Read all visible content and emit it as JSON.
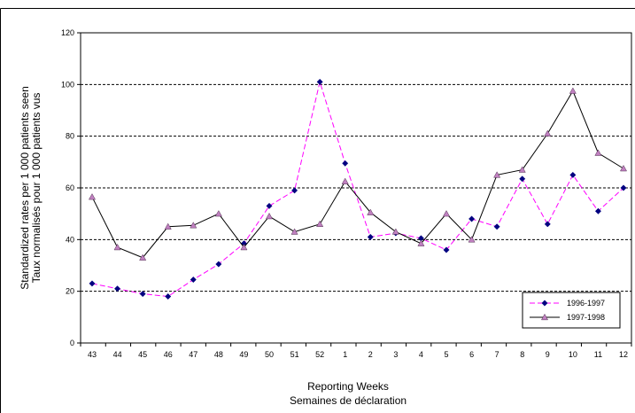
{
  "chart_data": {
    "type": "line",
    "categories": [
      "43",
      "44",
      "45",
      "46",
      "47",
      "48",
      "49",
      "50",
      "51",
      "52",
      "1",
      "2",
      "3",
      "4",
      "5",
      "6",
      "7",
      "8",
      "9",
      "10",
      "11",
      "12"
    ],
    "series": [
      {
        "name": "1996-1997",
        "values": [
          23,
          21,
          19,
          18,
          24.5,
          30.5,
          38.5,
          53,
          59,
          101,
          69.5,
          41,
          42.5,
          40.5,
          36,
          48,
          45,
          63.5,
          46,
          65,
          51,
          60
        ],
        "color": "#ff00ff",
        "marker": "diamond",
        "marker_color": "#000080",
        "line_style": "dashed"
      },
      {
        "name": "1997-1998",
        "values": [
          56.5,
          37,
          33,
          45,
          45.5,
          50,
          37,
          49,
          43,
          46,
          62.5,
          50.5,
          43,
          38.5,
          50,
          40,
          65,
          67,
          81,
          97.5,
          73.5,
          67.5
        ],
        "color": "#000000",
        "marker": "triangle",
        "marker_color": "#c080c0",
        "line_style": "solid"
      }
    ],
    "ylim": [
      0,
      120
    ],
    "yticks": [
      0,
      20,
      40,
      60,
      80,
      100,
      120
    ],
    "ylabel_line1": "Standardized rates per 1 000 patients seen",
    "ylabel_line2": "Taux normalisés pour 1 000 patients vus",
    "xlabel_line1": "Reporting Weeks",
    "xlabel_line2": "Semaines de déclaration",
    "grid": "horizontal-dashed",
    "legend_position": "bottom-right"
  }
}
